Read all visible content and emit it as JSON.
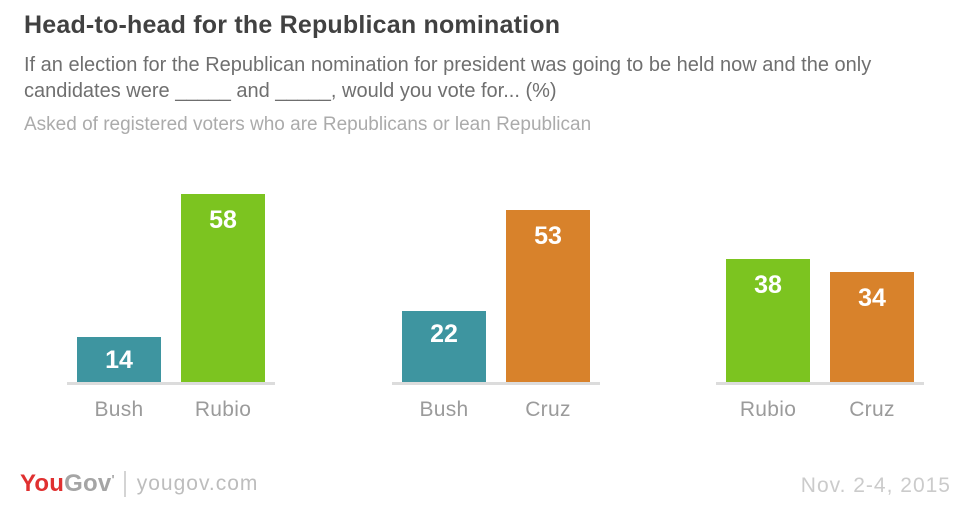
{
  "header": {
    "title": "Head-to-head for the Republican nomination",
    "subtitle": "If an election for the Republican nomination for president was going to be held now and the only candidates were _____ and _____, would you vote for... (%)",
    "note": "Asked of registered voters who are Republicans or lean Republican"
  },
  "chart_data": {
    "type": "bar",
    "title": "Head-to-head for the Republican nomination",
    "unit": "percent",
    "ylim": [
      0,
      60
    ],
    "grid": false,
    "legend": "none",
    "value_labels": "inside-top",
    "groups": [
      {
        "matchup": "Bush vs Rubio",
        "bars": [
          {
            "label": "Bush",
            "value": 14,
            "color": "#3e95a0"
          },
          {
            "label": "Rubio",
            "value": 58,
            "color": "#7cc420"
          }
        ]
      },
      {
        "matchup": "Bush vs Cruz",
        "bars": [
          {
            "label": "Bush",
            "value": 22,
            "color": "#3e95a0"
          },
          {
            "label": "Cruz",
            "value": 53,
            "color": "#d8822b"
          }
        ]
      },
      {
        "matchup": "Rubio vs Cruz",
        "bars": [
          {
            "label": "Rubio",
            "value": 38,
            "color": "#7cc420"
          },
          {
            "label": "Cruz",
            "value": 34,
            "color": "#d8822b"
          }
        ]
      }
    ],
    "colors": {
      "teal": "#3e95a0",
      "green": "#7cc420",
      "orange": "#d8822b"
    }
  },
  "footer": {
    "logo": {
      "you": "You",
      "gov": "Gov",
      "mark": "'"
    },
    "site": "yougov.com",
    "date": "Nov. 2-4, 2015"
  }
}
